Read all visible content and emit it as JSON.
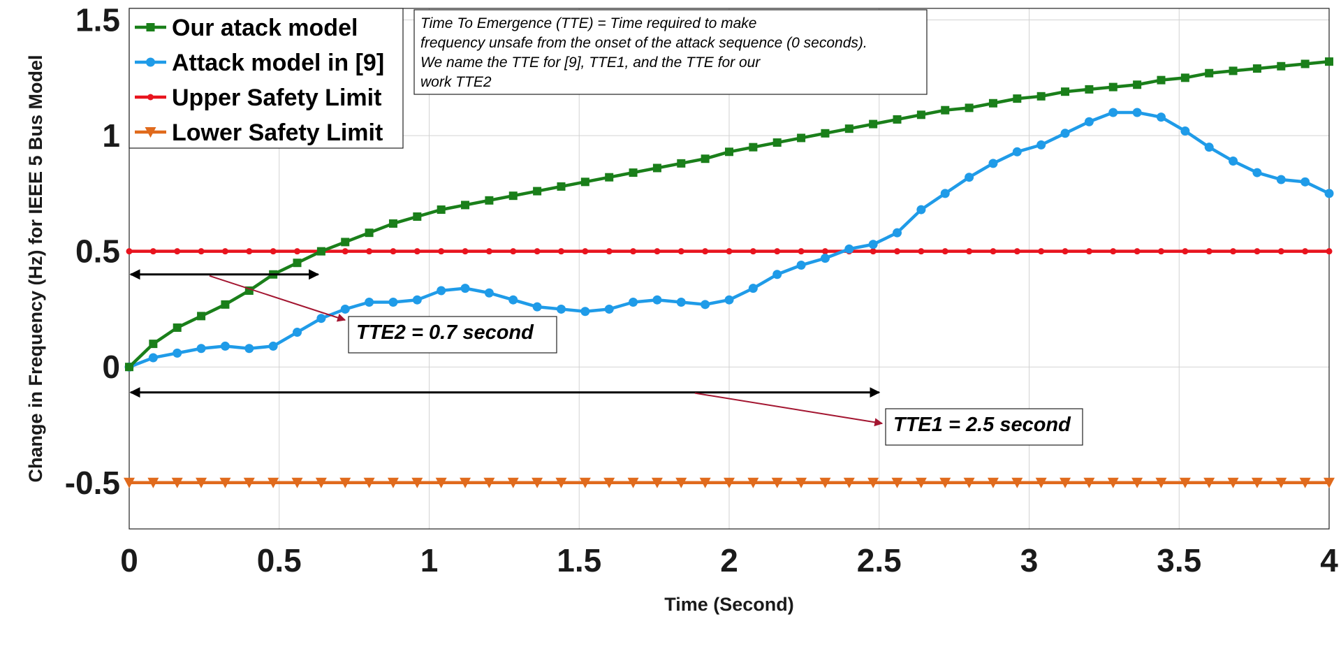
{
  "chart_data": {
    "type": "line",
    "title": "",
    "xlabel": "Time (Second)",
    "ylabel": "Change in Frequency (Hz) for IEEE 5 Bus Model",
    "xlim": [
      0,
      4
    ],
    "ylim": [
      -0.7,
      1.55
    ],
    "xticks": [
      "0",
      "0.5",
      "1",
      "1.5",
      "2",
      "2.5",
      "3",
      "3.5",
      "4"
    ],
    "yticks": [
      "-0.5",
      "0",
      "0.5",
      "1",
      "1.5"
    ],
    "grid": true,
    "legend_position": "top-left",
    "series": [
      {
        "name": "Our atack model",
        "color": "#1a7f1a",
        "marker": "square",
        "x": [
          0,
          0.08,
          0.16,
          0.24,
          0.32,
          0.4,
          0.48,
          0.56,
          0.64,
          0.72,
          0.8,
          0.88,
          0.96,
          1.04,
          1.12,
          1.2,
          1.28,
          1.36,
          1.44,
          1.52,
          1.6,
          1.68,
          1.76,
          1.84,
          1.92,
          2.0,
          2.08,
          2.16,
          2.24,
          2.32,
          2.4,
          2.48,
          2.56,
          2.64,
          2.72,
          2.8,
          2.88,
          2.96,
          3.04,
          3.12,
          3.2,
          3.28,
          3.36,
          3.44,
          3.52,
          3.6,
          3.68,
          3.76,
          3.84,
          3.92,
          4.0
        ],
        "y": [
          0,
          0.1,
          0.17,
          0.22,
          0.27,
          0.33,
          0.4,
          0.45,
          0.5,
          0.54,
          0.58,
          0.62,
          0.65,
          0.68,
          0.7,
          0.72,
          0.74,
          0.76,
          0.78,
          0.8,
          0.82,
          0.84,
          0.86,
          0.88,
          0.9,
          0.93,
          0.95,
          0.97,
          0.99,
          1.01,
          1.03,
          1.05,
          1.07,
          1.09,
          1.11,
          1.12,
          1.14,
          1.16,
          1.17,
          1.19,
          1.2,
          1.21,
          1.22,
          1.24,
          1.25,
          1.27,
          1.28,
          1.29,
          1.3,
          1.31,
          1.32
        ]
      },
      {
        "name": "Attack model in [9]",
        "color": "#1f9be8",
        "marker": "circle",
        "x": [
          0,
          0.08,
          0.16,
          0.24,
          0.32,
          0.4,
          0.48,
          0.56,
          0.64,
          0.72,
          0.8,
          0.88,
          0.96,
          1.04,
          1.12,
          1.2,
          1.28,
          1.36,
          1.44,
          1.52,
          1.6,
          1.68,
          1.76,
          1.84,
          1.92,
          2.0,
          2.08,
          2.16,
          2.24,
          2.32,
          2.4,
          2.48,
          2.56,
          2.64,
          2.72,
          2.8,
          2.88,
          2.96,
          3.04,
          3.12,
          3.2,
          3.28,
          3.36,
          3.44,
          3.52,
          3.6,
          3.68,
          3.76,
          3.84,
          3.92,
          4.0
        ],
        "y": [
          0,
          0.04,
          0.06,
          0.08,
          0.09,
          0.08,
          0.09,
          0.15,
          0.21,
          0.25,
          0.28,
          0.28,
          0.29,
          0.33,
          0.34,
          0.32,
          0.29,
          0.26,
          0.25,
          0.24,
          0.25,
          0.28,
          0.29,
          0.28,
          0.27,
          0.29,
          0.34,
          0.4,
          0.44,
          0.47,
          0.51,
          0.53,
          0.58,
          0.68,
          0.75,
          0.82,
          0.88,
          0.93,
          0.96,
          1.01,
          1.06,
          1.1,
          1.1,
          1.08,
          1.02,
          0.95,
          0.89,
          0.84,
          0.81,
          0.8,
          0.75
        ]
      },
      {
        "name": "Upper Safety Limit",
        "color": "#e8141e",
        "marker": "dot",
        "x": [
          0,
          0.08,
          0.16,
          0.24,
          0.32,
          0.4,
          0.48,
          0.56,
          0.64,
          0.72,
          0.8,
          0.88,
          0.96,
          1.04,
          1.12,
          1.2,
          1.28,
          1.36,
          1.44,
          1.52,
          1.6,
          1.68,
          1.76,
          1.84,
          1.92,
          2.0,
          2.08,
          2.16,
          2.24,
          2.32,
          2.4,
          2.48,
          2.56,
          2.64,
          2.72,
          2.8,
          2.88,
          2.96,
          3.04,
          3.12,
          3.2,
          3.28,
          3.36,
          3.44,
          3.52,
          3.6,
          3.68,
          3.76,
          3.84,
          3.92,
          4.0
        ],
        "y": [
          0.5,
          0.5,
          0.5,
          0.5,
          0.5,
          0.5,
          0.5,
          0.5,
          0.5,
          0.5,
          0.5,
          0.5,
          0.5,
          0.5,
          0.5,
          0.5,
          0.5,
          0.5,
          0.5,
          0.5,
          0.5,
          0.5,
          0.5,
          0.5,
          0.5,
          0.5,
          0.5,
          0.5,
          0.5,
          0.5,
          0.5,
          0.5,
          0.5,
          0.5,
          0.5,
          0.5,
          0.5,
          0.5,
          0.5,
          0.5,
          0.5,
          0.5,
          0.5,
          0.5,
          0.5,
          0.5,
          0.5,
          0.5,
          0.5,
          0.5,
          0.5
        ]
      },
      {
        "name": "Lower Safety Limit",
        "color": "#e06a1c",
        "marker": "triangle-down",
        "x": [
          0,
          0.08,
          0.16,
          0.24,
          0.32,
          0.4,
          0.48,
          0.56,
          0.64,
          0.72,
          0.8,
          0.88,
          0.96,
          1.04,
          1.12,
          1.2,
          1.28,
          1.36,
          1.44,
          1.52,
          1.6,
          1.68,
          1.76,
          1.84,
          1.92,
          2.0,
          2.08,
          2.16,
          2.24,
          2.32,
          2.4,
          2.48,
          2.56,
          2.64,
          2.72,
          2.8,
          2.88,
          2.96,
          3.04,
          3.12,
          3.2,
          3.28,
          3.36,
          3.44,
          3.52,
          3.6,
          3.68,
          3.76,
          3.84,
          3.92,
          4.0
        ],
        "y": [
          -0.5,
          -0.5,
          -0.5,
          -0.5,
          -0.5,
          -0.5,
          -0.5,
          -0.5,
          -0.5,
          -0.5,
          -0.5,
          -0.5,
          -0.5,
          -0.5,
          -0.5,
          -0.5,
          -0.5,
          -0.5,
          -0.5,
          -0.5,
          -0.5,
          -0.5,
          -0.5,
          -0.5,
          -0.5,
          -0.5,
          -0.5,
          -0.5,
          -0.5,
          -0.5,
          -0.5,
          -0.5,
          -0.5,
          -0.5,
          -0.5,
          -0.5,
          -0.5,
          -0.5,
          -0.5,
          -0.5,
          -0.5,
          -0.5,
          -0.5,
          -0.5,
          -0.5,
          -0.5,
          -0.5,
          -0.5,
          -0.5,
          -0.5,
          -0.5
        ]
      }
    ],
    "annotations": {
      "note_lines": [
        "Time To Emergence (TTE) = Time required to make",
        "frequency unsafe from the onset of the attack sequence (0 seconds).",
        "We name the TTE for  [9], TTE1, and the TTE for our",
        "work TTE2"
      ],
      "tte2_label": "TTE2 = 0.7 second",
      "tte1_label": "TTE1 = 2.5 second",
      "tte2_span": {
        "from_x": 0,
        "to_x": 0.63,
        "y": 0.4
      },
      "tte1_span": {
        "from_x": 0,
        "to_x": 2.5,
        "y": -0.11
      },
      "arrow_color": "#a31530"
    }
  }
}
